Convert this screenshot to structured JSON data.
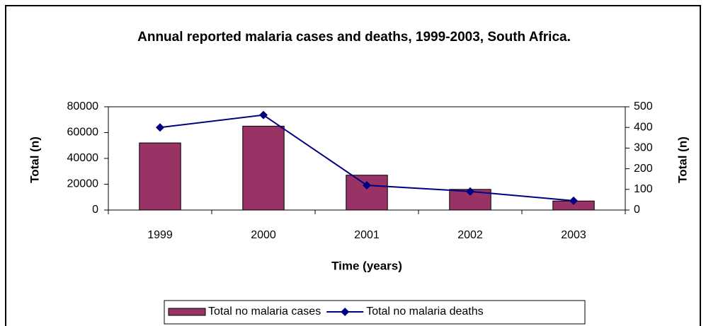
{
  "chart_data": {
    "type": "bar",
    "title": "Annual reported malaria cases and deaths, 1999-2003, South Africa.",
    "x_label": "Time (years)",
    "y_label": "Total (n)",
    "y2_label": "Total (n)",
    "categories": [
      "1999",
      "2000",
      "2001",
      "2002",
      "2003"
    ],
    "series": [
      {
        "name": "Total no malaria cases",
        "type": "bar",
        "color": "#993366",
        "values": [
          52000,
          65000,
          27000,
          16000,
          7000
        ]
      },
      {
        "name": "Total no malaria deaths",
        "type": "line",
        "axis": "y2",
        "color": "#000080",
        "values": [
          400,
          460,
          120,
          90,
          45
        ]
      }
    ],
    "ylim": [
      0,
      80000
    ],
    "yticks": [
      0,
      20000,
      40000,
      60000,
      80000
    ],
    "y2lim": [
      0,
      500
    ],
    "y2ticks": [
      0,
      100,
      200,
      300,
      400,
      500
    ],
    "grid": false,
    "legend": "bottom"
  }
}
